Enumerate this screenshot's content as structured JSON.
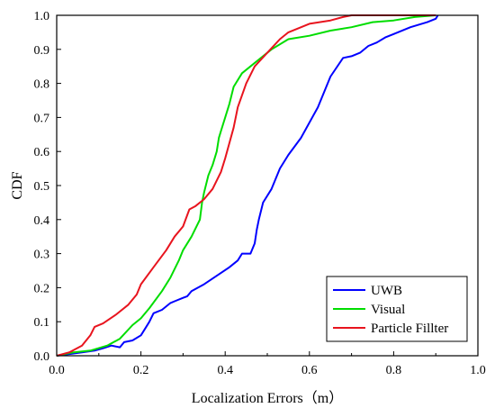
{
  "chart_data": {
    "type": "line",
    "title": "",
    "xlabel": "Localization Errors（m）",
    "ylabel": "CDF",
    "xlim": [
      0,
      1.0
    ],
    "ylim": [
      0,
      1.0
    ],
    "xticks": [
      "0.0",
      "0.2",
      "0.4",
      "0.6",
      "0.8",
      "1.0"
    ],
    "yticks": [
      "0.0",
      "0.1",
      "0.2",
      "0.3",
      "0.4",
      "0.5",
      "0.6",
      "0.7",
      "0.8",
      "0.9",
      "1.0"
    ],
    "grid": false,
    "legend": "bottom-right",
    "series": [
      {
        "name": "UWB",
        "color": "#0000ff",
        "points": [
          [
            0.0,
            0.0
          ],
          [
            0.03,
            0.005
          ],
          [
            0.06,
            0.01
          ],
          [
            0.09,
            0.015
          ],
          [
            0.11,
            0.022
          ],
          [
            0.13,
            0.03
          ],
          [
            0.15,
            0.025
          ],
          [
            0.16,
            0.04
          ],
          [
            0.18,
            0.045
          ],
          [
            0.2,
            0.06
          ],
          [
            0.21,
            0.08
          ],
          [
            0.22,
            0.1
          ],
          [
            0.23,
            0.125
          ],
          [
            0.25,
            0.135
          ],
          [
            0.27,
            0.155
          ],
          [
            0.28,
            0.16
          ],
          [
            0.3,
            0.17
          ],
          [
            0.31,
            0.175
          ],
          [
            0.32,
            0.19
          ],
          [
            0.35,
            0.21
          ],
          [
            0.38,
            0.235
          ],
          [
            0.41,
            0.26
          ],
          [
            0.43,
            0.28
          ],
          [
            0.44,
            0.3
          ],
          [
            0.46,
            0.3
          ],
          [
            0.47,
            0.33
          ],
          [
            0.475,
            0.37
          ],
          [
            0.48,
            0.4
          ],
          [
            0.49,
            0.45
          ],
          [
            0.51,
            0.49
          ],
          [
            0.53,
            0.55
          ],
          [
            0.55,
            0.59
          ],
          [
            0.58,
            0.64
          ],
          [
            0.62,
            0.73
          ],
          [
            0.65,
            0.82
          ],
          [
            0.68,
            0.875
          ],
          [
            0.7,
            0.88
          ],
          [
            0.72,
            0.89
          ],
          [
            0.74,
            0.91
          ],
          [
            0.76,
            0.92
          ],
          [
            0.78,
            0.935
          ],
          [
            0.8,
            0.945
          ],
          [
            0.84,
            0.965
          ],
          [
            0.88,
            0.98
          ],
          [
            0.9,
            0.99
          ],
          [
            0.905,
            1.0
          ]
        ]
      },
      {
        "name": "Visual",
        "color": "#00dd00",
        "points": [
          [
            0.0,
            0.0
          ],
          [
            0.04,
            0.01
          ],
          [
            0.08,
            0.015
          ],
          [
            0.12,
            0.03
          ],
          [
            0.15,
            0.05
          ],
          [
            0.18,
            0.09
          ],
          [
            0.2,
            0.11
          ],
          [
            0.22,
            0.14
          ],
          [
            0.25,
            0.19
          ],
          [
            0.27,
            0.23
          ],
          [
            0.29,
            0.28
          ],
          [
            0.3,
            0.31
          ],
          [
            0.32,
            0.35
          ],
          [
            0.34,
            0.4
          ],
          [
            0.345,
            0.45
          ],
          [
            0.35,
            0.48
          ],
          [
            0.36,
            0.53
          ],
          [
            0.37,
            0.56
          ],
          [
            0.38,
            0.6
          ],
          [
            0.385,
            0.64
          ],
          [
            0.39,
            0.66
          ],
          [
            0.4,
            0.7
          ],
          [
            0.41,
            0.74
          ],
          [
            0.42,
            0.79
          ],
          [
            0.44,
            0.83
          ],
          [
            0.46,
            0.85
          ],
          [
            0.48,
            0.87
          ],
          [
            0.51,
            0.9
          ],
          [
            0.55,
            0.93
          ],
          [
            0.6,
            0.94
          ],
          [
            0.65,
            0.955
          ],
          [
            0.7,
            0.965
          ],
          [
            0.75,
            0.98
          ],
          [
            0.8,
            0.985
          ],
          [
            0.85,
            0.995
          ],
          [
            0.9,
            1.0
          ]
        ]
      },
      {
        "name": "Particle Fillter",
        "color": "#e8141e",
        "points": [
          [
            0.0,
            0.0
          ],
          [
            0.03,
            0.01
          ],
          [
            0.06,
            0.03
          ],
          [
            0.08,
            0.06
          ],
          [
            0.09,
            0.085
          ],
          [
            0.11,
            0.095
          ],
          [
            0.14,
            0.12
          ],
          [
            0.17,
            0.15
          ],
          [
            0.19,
            0.18
          ],
          [
            0.2,
            0.21
          ],
          [
            0.23,
            0.26
          ],
          [
            0.26,
            0.31
          ],
          [
            0.28,
            0.35
          ],
          [
            0.3,
            0.38
          ],
          [
            0.315,
            0.43
          ],
          [
            0.33,
            0.44
          ],
          [
            0.35,
            0.46
          ],
          [
            0.37,
            0.49
          ],
          [
            0.39,
            0.54
          ],
          [
            0.4,
            0.58
          ],
          [
            0.42,
            0.67
          ],
          [
            0.43,
            0.73
          ],
          [
            0.45,
            0.8
          ],
          [
            0.47,
            0.85
          ],
          [
            0.5,
            0.89
          ],
          [
            0.53,
            0.93
          ],
          [
            0.55,
            0.95
          ],
          [
            0.6,
            0.975
          ],
          [
            0.65,
            0.985
          ],
          [
            0.68,
            0.995
          ],
          [
            0.7,
            1.0
          ],
          [
            0.9,
            1.0
          ]
        ]
      }
    ]
  }
}
